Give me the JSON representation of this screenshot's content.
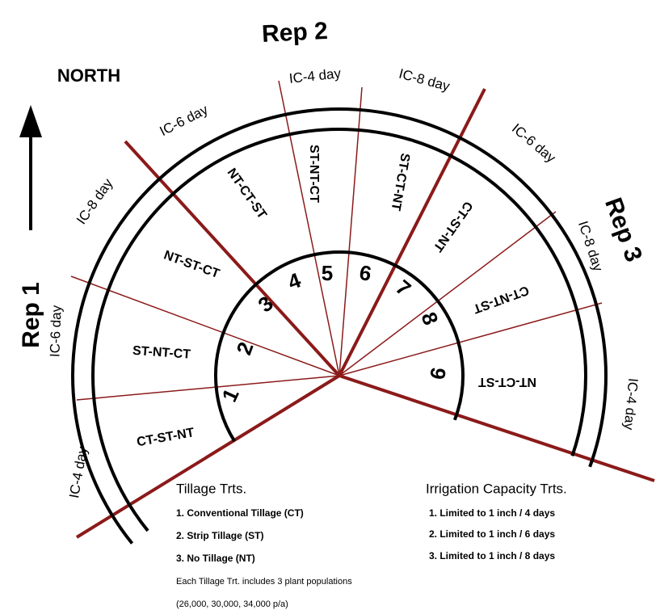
{
  "north": "NORTH",
  "reps": [
    "Rep 1",
    "Rep 2",
    "Rep 3"
  ],
  "irrigation_plots": [
    "IC-4 day",
    "IC-6 day",
    "IC-8 day",
    "IC-6 day",
    "IC-4 day",
    "IC-8 day",
    "IC-6 day",
    "IC-8 day",
    "IC-4 day"
  ],
  "tillage_plots": [
    {
      "number": "1",
      "label": "CT-ST-NT"
    },
    {
      "number": "2",
      "label": "ST-NT-CT"
    },
    {
      "number": "3",
      "label": "NT-ST-CT"
    },
    {
      "number": "4",
      "label": "NT-CT-ST"
    },
    {
      "number": "5",
      "label": "ST-NT-CT"
    },
    {
      "number": "6",
      "label": "ST-CT-NT"
    },
    {
      "number": "7",
      "label": "CT-ST-NT"
    },
    {
      "number": "8",
      "label": "CT-NT-ST"
    },
    {
      "number": "9",
      "label": "NT-CT-ST"
    }
  ],
  "legend": {
    "tillage": {
      "title": "Tillage Trts.",
      "items": [
        "1.  Conventional Tillage (CT)",
        "2.  Strip Tillage (ST)",
        "3.  No Tillage (NT)"
      ],
      "note": "Each Tillage Trt. includes 3 plant populations",
      "populations": "(26,000, 30,000, 34,000 p/a)"
    },
    "irrigation": {
      "title": "Irrigation Capacity Trts.",
      "items": [
        "1.  Limited to 1 inch / 4 days",
        "2.  Limited to 1 inch / 6 days",
        "3.  Limited to 1 inch / 8 days"
      ]
    }
  }
}
